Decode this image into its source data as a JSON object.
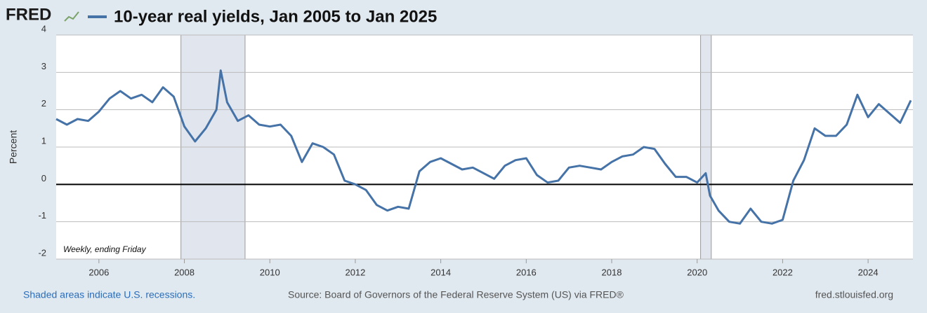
{
  "logo": "FRED",
  "chart_data": {
    "type": "line",
    "title": "10-year real yields, Jan 2005 to Jan 2025",
    "y_label": "Percent",
    "annotation": "Weekly, ending Friday",
    "footer_left": "Shaded areas indicate U.S. recessions.",
    "footer_center": "Source: Board of Governors of the Federal Reserve System (US) via FRED®",
    "footer_right": "fred.stlouisfed.org",
    "xlim": [
      2005,
      2025.05
    ],
    "xticks": [
      2006,
      2008,
      2010,
      2012,
      2014,
      2016,
      2018,
      2020,
      2022,
      2024
    ],
    "ylim": [
      -2,
      4
    ],
    "yticks": [
      -2,
      -1,
      0,
      1,
      2,
      3,
      4
    ],
    "grid": true,
    "recessions": [
      [
        2007.92,
        2009.42
      ],
      [
        2020.08,
        2020.33
      ]
    ],
    "x": [
      2005.0,
      2005.25,
      2005.5,
      2005.75,
      2006.0,
      2006.25,
      2006.5,
      2006.75,
      2007.0,
      2007.25,
      2007.5,
      2007.75,
      2008.0,
      2008.25,
      2008.5,
      2008.75,
      2008.85,
      2009.0,
      2009.25,
      2009.5,
      2009.75,
      2010.0,
      2010.25,
      2010.5,
      2010.75,
      2011.0,
      2011.25,
      2011.5,
      2011.75,
      2012.0,
      2012.25,
      2012.5,
      2012.75,
      2013.0,
      2013.25,
      2013.5,
      2013.75,
      2014.0,
      2014.25,
      2014.5,
      2014.75,
      2015.0,
      2015.25,
      2015.5,
      2015.75,
      2016.0,
      2016.25,
      2016.5,
      2016.75,
      2017.0,
      2017.25,
      2017.5,
      2017.75,
      2018.0,
      2018.25,
      2018.5,
      2018.75,
      2019.0,
      2019.25,
      2019.5,
      2019.75,
      2020.0,
      2020.2,
      2020.3,
      2020.5,
      2020.75,
      2021.0,
      2021.25,
      2021.5,
      2021.75,
      2022.0,
      2022.25,
      2022.5,
      2022.75,
      2023.0,
      2023.25,
      2023.5,
      2023.75,
      2024.0,
      2024.25,
      2024.5,
      2024.75,
      2025.0
    ],
    "series": [
      {
        "name": "10-year real yields, Jan 2005 to Jan 2025",
        "color": "#4572a7",
        "values": [
          1.75,
          1.6,
          1.75,
          1.7,
          1.95,
          2.3,
          2.5,
          2.3,
          2.4,
          2.2,
          2.6,
          2.35,
          1.55,
          1.15,
          1.5,
          2.0,
          3.05,
          2.2,
          1.7,
          1.85,
          1.6,
          1.55,
          1.6,
          1.3,
          0.6,
          1.1,
          1.0,
          0.8,
          0.1,
          0.0,
          -0.15,
          -0.55,
          -0.7,
          -0.6,
          -0.65,
          0.35,
          0.6,
          0.7,
          0.55,
          0.4,
          0.45,
          0.3,
          0.15,
          0.5,
          0.65,
          0.7,
          0.25,
          0.05,
          0.1,
          0.45,
          0.5,
          0.45,
          0.4,
          0.6,
          0.75,
          0.8,
          1.0,
          0.95,
          0.55,
          0.2,
          0.2,
          0.05,
          0.3,
          -0.3,
          -0.7,
          -1.0,
          -1.05,
          -0.65,
          -1.0,
          -1.05,
          -0.95,
          0.1,
          0.65,
          1.5,
          1.3,
          1.3,
          1.6,
          2.4,
          1.8,
          2.15,
          1.9,
          1.65,
          2.25
        ]
      }
    ]
  }
}
